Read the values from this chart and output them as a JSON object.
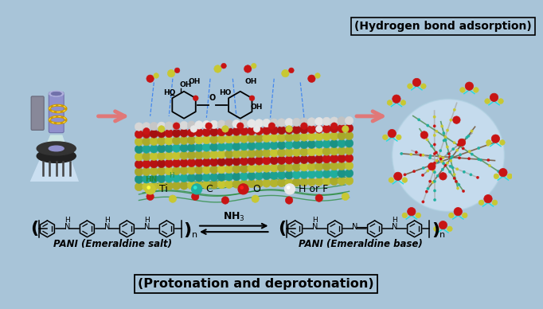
{
  "bg_color": "#a8c4d8",
  "title_bottom": "(Protonation and deprotonation)",
  "title_top_right": "(Hydrogen bond adsorption)",
  "legend_items": [
    {
      "label": "Ti",
      "color": "#c8c832"
    },
    {
      "label": "C",
      "color": "#20b0a0"
    },
    {
      "label": "O",
      "color": "#c81414"
    },
    {
      "label": "H or F",
      "color": "#e8e8e8"
    }
  ],
  "arrow_color": "#e07878",
  "pani_left_label": "PANI (Emeraldine salt)",
  "pani_right_label": "PANI (Emeraldine base)",
  "nh3_label": "NH3",
  "fig_width": 6.82,
  "fig_height": 3.88,
  "dpi": 100
}
